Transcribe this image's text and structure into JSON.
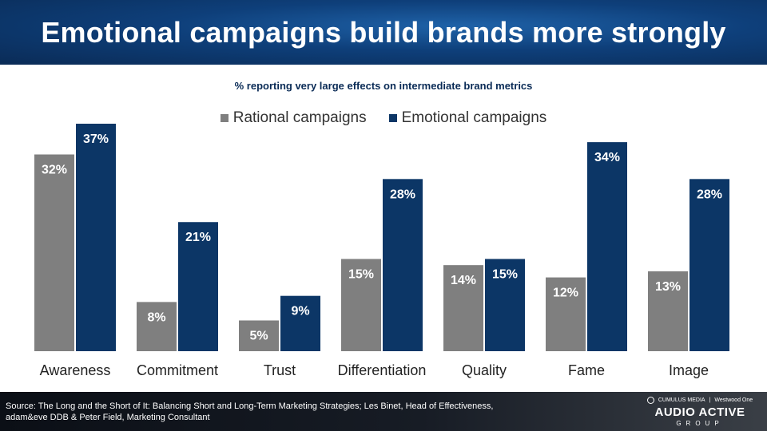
{
  "header": {
    "title": "Emotional campaigns build brands more strongly"
  },
  "chart_data": {
    "type": "bar",
    "title": "% reporting very  large effects on intermediate brand metrics",
    "categories": [
      "Awareness",
      "Commitment",
      "Trust",
      "Differentiation",
      "Quality",
      "Fame",
      "Image"
    ],
    "series": [
      {
        "name": "Rational campaigns",
        "values": [
          32,
          8,
          5,
          15,
          14,
          12,
          13
        ],
        "labels": [
          "32%",
          "8%",
          "5%",
          "15%",
          "14%",
          "12%",
          "13%"
        ],
        "color": "#7f7f7f"
      },
      {
        "name": "Emotional campaigns",
        "values": [
          37,
          21,
          9,
          28,
          15,
          34,
          28
        ],
        "labels": [
          "37%",
          "21%",
          "9%",
          "28%",
          "15%",
          "34%",
          "28%"
        ],
        "color": "#0c3666"
      }
    ],
    "ylim": [
      0,
      37
    ],
    "legend": "top-center",
    "grid": false
  },
  "footer": {
    "source": "Source: The Long and the Short of It: Balancing Short and Long-Term Marketing Strategies; Les Binet, Head of Effectiveness, adam&eve DDB & Peter Field, Marketing Consultant",
    "brand_left": "CUMULUS MEDIA",
    "brand_right": "Westwood One",
    "brand_main": "AUDIO ACTIVE",
    "brand_sub": "GROUP"
  }
}
